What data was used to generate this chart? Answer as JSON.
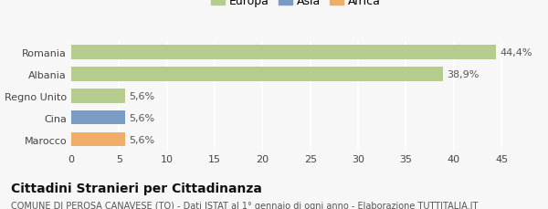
{
  "categories": [
    "Romania",
    "Albania",
    "Regno Unito",
    "Cina",
    "Marocco"
  ],
  "values": [
    44.4,
    38.9,
    5.6,
    5.6,
    5.6
  ],
  "bar_colors": [
    "#b5cc8e",
    "#b5cc8e",
    "#b5cc8e",
    "#7a9cc4",
    "#f0ad6a"
  ],
  "continent_colors": {
    "Europa": "#b5cc8e",
    "Asia": "#7a9cc4",
    "Africa": "#f0ad6a"
  },
  "legend_labels": [
    "Europa",
    "Asia",
    "Africa"
  ],
  "value_labels": [
    "44,4%",
    "38,9%",
    "5,6%",
    "5,6%",
    "5,6%"
  ],
  "title": "Cittadini Stranieri per Cittadinanza",
  "subtitle": "COMUNE DI PEROSA CANAVESE (TO) - Dati ISTAT al 1° gennaio di ogni anno - Elaborazione TUTTITALIA.IT",
  "xlim": [
    0,
    47
  ],
  "xticks": [
    0,
    5,
    10,
    15,
    20,
    25,
    30,
    35,
    40,
    45
  ],
  "background_color": "#f7f7f7",
  "title_fontsize": 10,
  "subtitle_fontsize": 7,
  "tick_fontsize": 8,
  "label_fontsize": 8,
  "legend_fontsize": 9
}
